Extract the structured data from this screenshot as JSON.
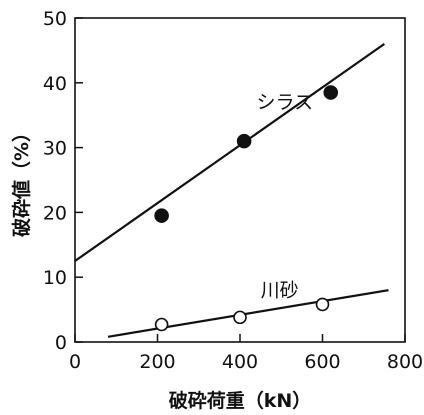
{
  "chart_data": {
    "type": "scatter",
    "xlabel": "破砕荷重（kN）",
    "ylabel": "破砕値（%）",
    "xlim": [
      0,
      800
    ],
    "ylim": [
      0,
      50
    ],
    "x_ticks": [
      0,
      200,
      400,
      600,
      800
    ],
    "y_ticks": [
      0,
      10,
      20,
      30,
      40,
      50
    ],
    "grid": false,
    "series": [
      {
        "name": "シラス",
        "marker": "filled-circle",
        "points": [
          {
            "x": 210,
            "y": 19.5
          },
          {
            "x": 410,
            "y": 31
          },
          {
            "x": 620,
            "y": 38.5
          }
        ],
        "fit_line": {
          "x": [
            0,
            750
          ],
          "y": [
            12.5,
            46
          ]
        }
      },
      {
        "name": "川砂",
        "marker": "open-circle",
        "points": [
          {
            "x": 210,
            "y": 2.7
          },
          {
            "x": 400,
            "y": 3.8
          },
          {
            "x": 600,
            "y": 5.8
          }
        ],
        "fit_line": {
          "x": [
            80,
            760
          ],
          "y": [
            0.8,
            8
          ]
        }
      }
    ]
  }
}
